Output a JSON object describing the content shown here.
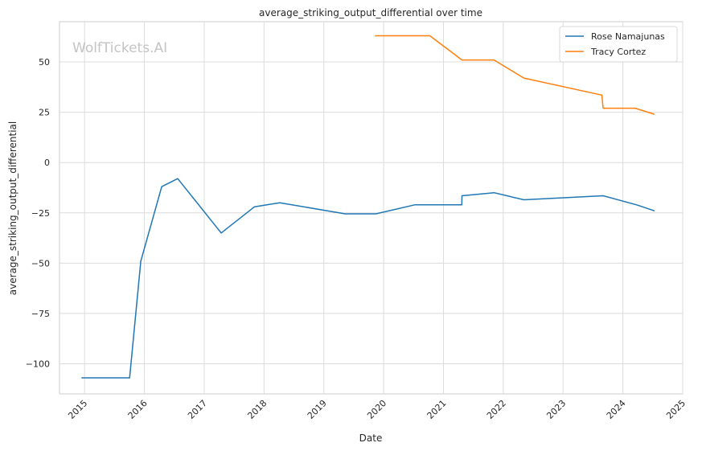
{
  "chart_data": {
    "type": "line",
    "title": "average_striking_output_differential over time",
    "xlabel": "Date",
    "ylabel": "average_striking_output_differential",
    "watermark": "WolfTickets.AI",
    "xlim": [
      "2014-08-01",
      "2025-01-01"
    ],
    "ylim": [
      -115,
      70
    ],
    "x_ticks": [
      "2015",
      "2016",
      "2017",
      "2018",
      "2019",
      "2020",
      "2021",
      "2022",
      "2023",
      "2024",
      "2025"
    ],
    "y_ticks": [
      -100,
      -75,
      -50,
      -25,
      0,
      25,
      50
    ],
    "y_tick_labels": [
      "−100",
      "−75",
      "−50",
      "−25",
      "0",
      "25",
      "50"
    ],
    "grid": true,
    "legend_position": "top-right",
    "colors": {
      "Rose Namajunas": "#1f77b4",
      "Tracy Cortez": "#ff7f0e"
    },
    "series": [
      {
        "name": "Rose Namajunas",
        "points": [
          [
            "2014-12-13",
            -107
          ],
          [
            "2015-10-03",
            -107
          ],
          [
            "2015-12-10",
            -49
          ],
          [
            "2016-04-16",
            -12
          ],
          [
            "2016-07-23",
            -8
          ],
          [
            "2017-04-15",
            -35
          ],
          [
            "2017-11-04",
            -22
          ],
          [
            "2018-04-07",
            -20
          ],
          [
            "2019-05-11",
            -25.5
          ],
          [
            "2019-11-15",
            -25.5
          ],
          [
            "2020-07-11",
            -21
          ],
          [
            "2021-04-23",
            -21
          ],
          [
            "2021-04-24",
            -16.5
          ],
          [
            "2021-11-06",
            -15
          ],
          [
            "2022-05-07",
            -18.5
          ],
          [
            "2023-09-02",
            -16.5
          ],
          [
            "2024-03-23",
            -21
          ],
          [
            "2024-07-13",
            -24
          ]
        ]
      },
      {
        "name": "Tracy Cortez",
        "points": [
          [
            "2019-11-09",
            63
          ],
          [
            "2020-10-10",
            63
          ],
          [
            "2021-04-24",
            51
          ],
          [
            "2021-11-06",
            51
          ],
          [
            "2022-05-07",
            42
          ],
          [
            "2023-08-26",
            33.5
          ],
          [
            "2023-09-02",
            27
          ],
          [
            "2024-03-16",
            27
          ],
          [
            "2024-07-13",
            24
          ]
        ]
      }
    ]
  }
}
